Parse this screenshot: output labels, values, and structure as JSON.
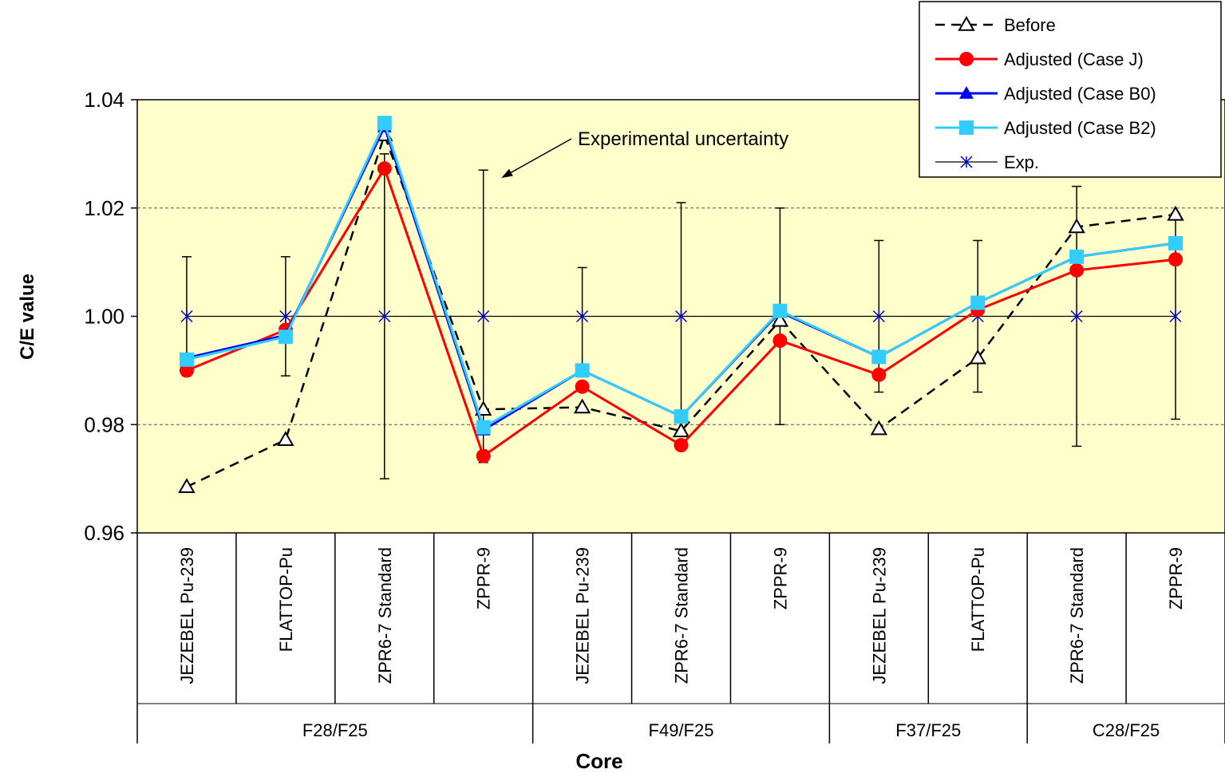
{
  "chart_data": {
    "type": "line",
    "ylabel": "C/E value",
    "xlabel": "Core",
    "ylim": [
      0.96,
      1.04
    ],
    "yticks": [
      "0.96",
      "0.98",
      "1.00",
      "1.02",
      "1.04"
    ],
    "grid": "dashed horizontal at 0.98 and 1.02",
    "plot_background": "#FFFFCC",
    "legend_position": "top-right",
    "categories": [
      "JEZEBEL Pu-239",
      "FLATTOP-Pu",
      "ZPR6-7 Standard",
      "ZPPR-9",
      "JEZEBEL Pu-239",
      "ZPR6-7 Standard",
      "ZPPR-9",
      "JEZEBEL Pu-239",
      "FLATTOP-Pu",
      "ZPR6-7 Standard",
      "ZPPR-9"
    ],
    "groups": [
      {
        "label": "F28/F25",
        "count": 4
      },
      {
        "label": "F49/F25",
        "count": 3
      },
      {
        "label": "F37/F25",
        "count": 2
      },
      {
        "label": "C28/F25",
        "count": 2
      }
    ],
    "annotation": {
      "text": "Experimental uncertainty",
      "points_to_category_index": 3
    },
    "series": [
      {
        "name": "Before",
        "style": "dashed",
        "marker": "open-triangle",
        "color": "#000000",
        "values": [
          0.9685,
          0.9772,
          1.0335,
          0.9828,
          0.9832,
          0.9788,
          0.9992,
          0.9792,
          0.9923,
          1.0165,
          1.0188
        ]
      },
      {
        "name": "Adjusted (Case J)",
        "style": "solid",
        "marker": "circle",
        "color": "#FF0000",
        "values": [
          0.99,
          0.9975,
          1.0273,
          0.9742,
          0.987,
          0.9762,
          0.9955,
          0.9892,
          1.0012,
          1.0085,
          1.0105
        ]
      },
      {
        "name": "Adjusted (Case B0)",
        "style": "solid",
        "marker": "triangle",
        "color": "#0000FF",
        "values": [
          0.9923,
          0.9965,
          1.035,
          0.979,
          0.99,
          0.9815,
          1.0008,
          0.9925,
          1.0025,
          1.011,
          1.0135
        ]
      },
      {
        "name": "Adjusted (Case B2)",
        "style": "solid",
        "marker": "square",
        "color": "#33CCFF",
        "values": [
          0.992,
          0.9962,
          1.0357,
          0.9795,
          0.99,
          0.9815,
          1.001,
          0.9925,
          1.0025,
          1.011,
          1.0135
        ]
      },
      {
        "name": "Exp.",
        "style": "solid",
        "marker": "asterisk",
        "color": "#000000",
        "marker_color": "#0000CC",
        "values": [
          1.0,
          1.0,
          1.0,
          1.0,
          1.0,
          1.0,
          1.0,
          1.0,
          1.0,
          1.0,
          1.0
        ],
        "uncertainty": [
          0.011,
          0.011,
          0.03,
          0.027,
          0.009,
          0.021,
          0.02,
          0.014,
          0.014,
          0.024,
          0.019
        ]
      }
    ]
  }
}
